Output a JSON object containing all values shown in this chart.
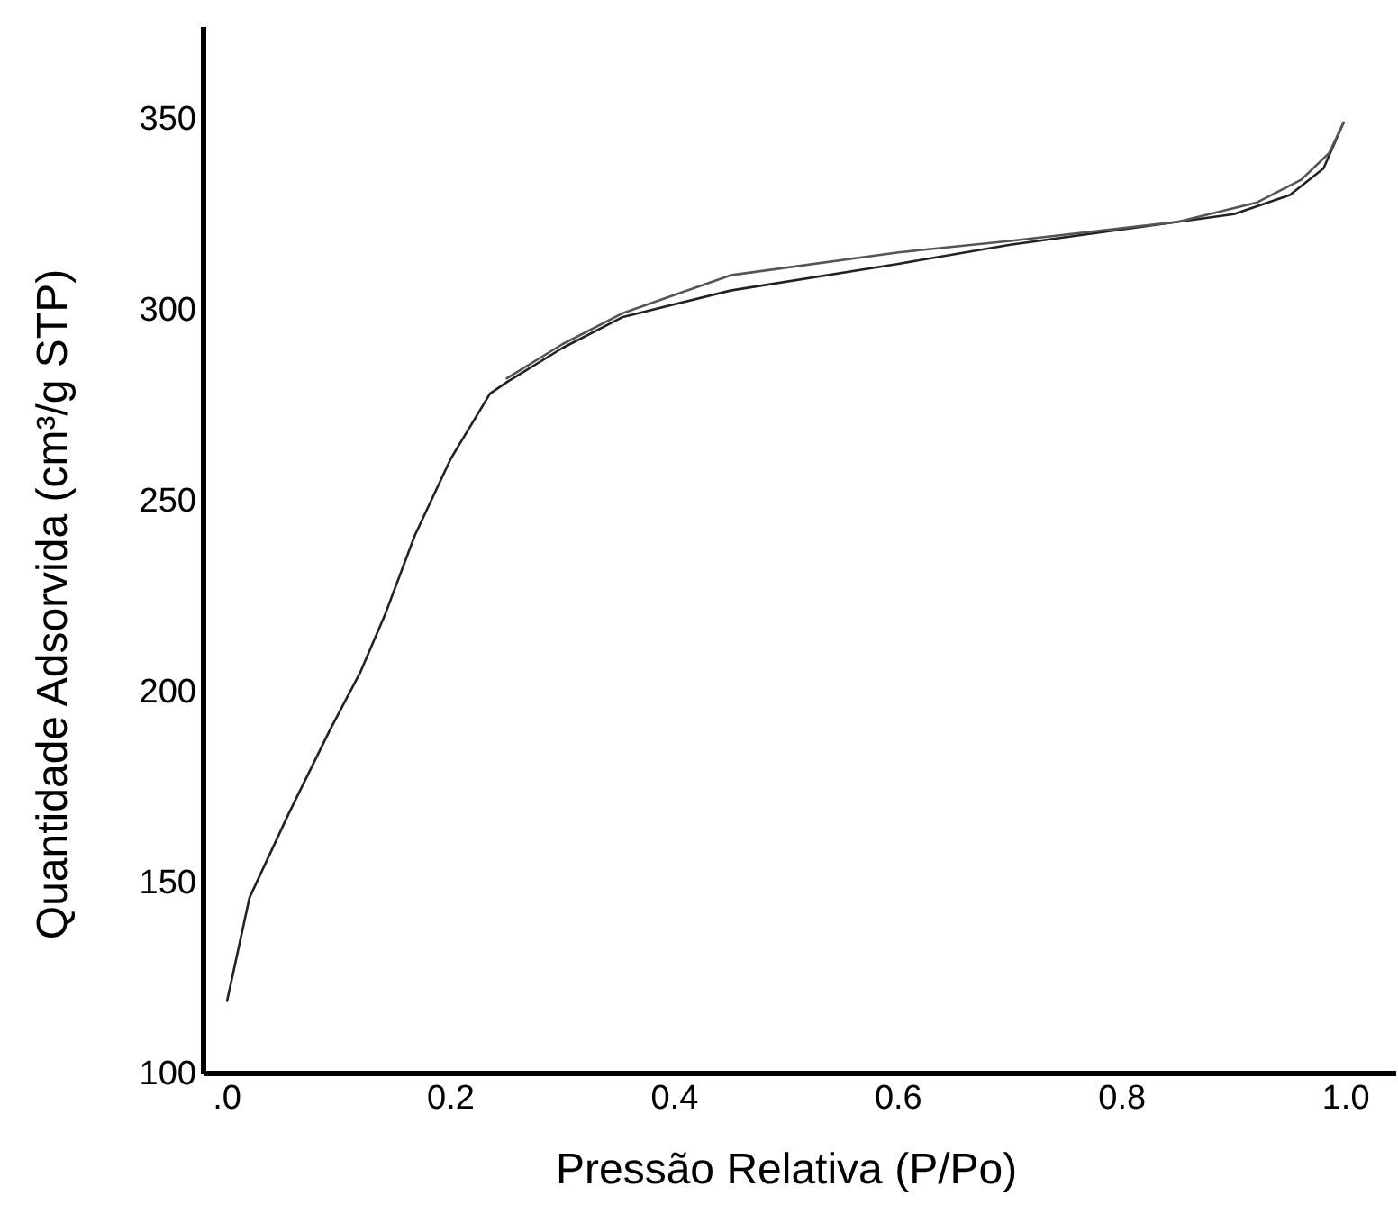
{
  "chart_data": {
    "type": "line",
    "xlabel": "Pressão Relativa (P/Po)",
    "ylabel": "Quantidade Adsorvida (cm³/g STP)",
    "xlim": [
      -0.021,
      1.045
    ],
    "ylim": [
      100,
      374
    ],
    "xticks": [
      {
        "value": 0,
        "label": ".0"
      },
      0.2,
      0.4,
      0.6,
      0.8,
      {
        "value": 1.0,
        "label": "1.0"
      }
    ],
    "yticks": [
      100,
      150,
      200,
      250,
      300,
      350
    ],
    "grid": false,
    "marker": "none",
    "line_style": "solid",
    "series": [
      {
        "color": "#222222",
        "x": [
          0,
          0.02,
          0.055,
          0.092,
          0.119,
          0.141,
          0.168,
          0.2,
          0.235,
          0.25,
          0.3,
          0.353,
          0.45,
          0.6,
          0.7,
          0.8,
          0.9,
          0.95,
          0.98,
          0.998
        ],
        "values": [
          119,
          146,
          168,
          190,
          205,
          220,
          241,
          261,
          278,
          281,
          290,
          298,
          305,
          312,
          317,
          321,
          325,
          330,
          337,
          349
        ]
      },
      {
        "color": "#555555",
        "x": [
          0.998,
          0.985,
          0.96,
          0.92,
          0.85,
          0.7,
          0.6,
          0.45,
          0.353,
          0.3,
          0.25
        ],
        "values": [
          349,
          341,
          334,
          328,
          323,
          318,
          315,
          309,
          299,
          291,
          282
        ]
      }
    ]
  }
}
